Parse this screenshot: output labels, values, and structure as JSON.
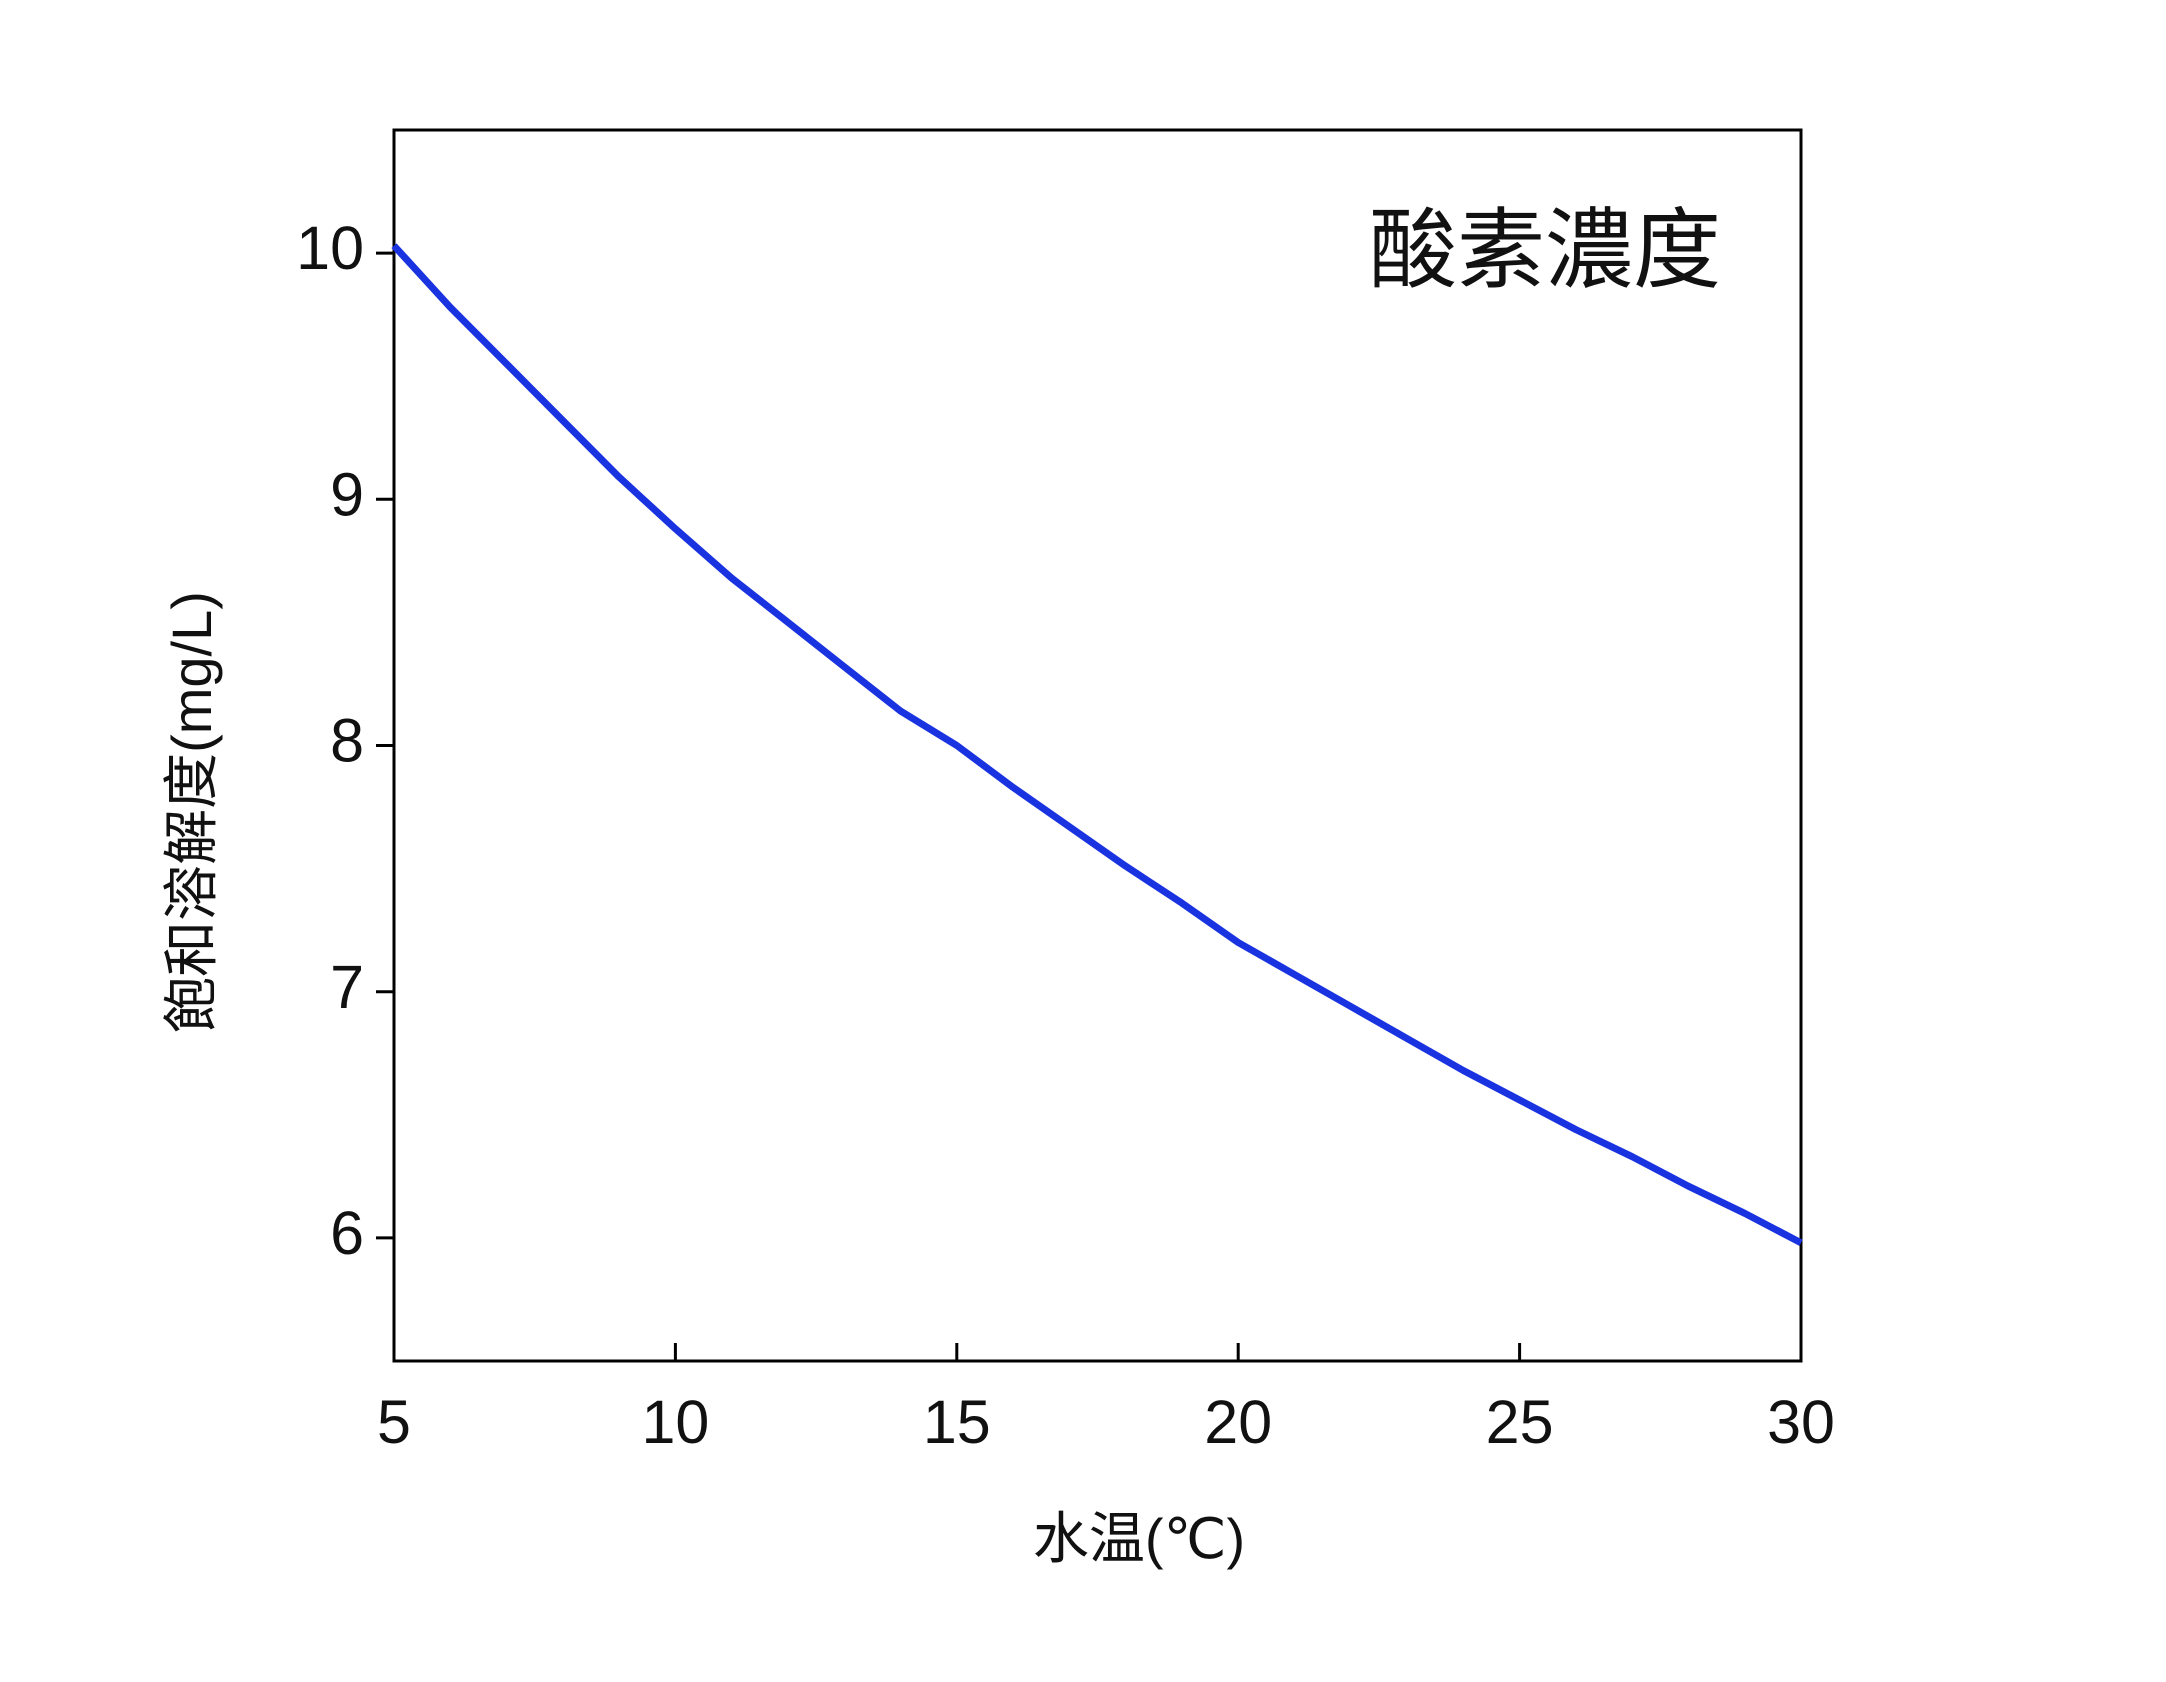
{
  "chart_data": {
    "type": "line",
    "annotation": "酸素濃度",
    "x_label": "水温(℃)",
    "y_label": "飽和溶解度(mg/L)",
    "x": [
      5,
      6,
      7,
      8,
      9,
      10,
      11,
      12,
      13,
      14,
      15,
      16,
      17,
      18,
      19,
      20,
      21,
      22,
      23,
      24,
      25,
      26,
      27,
      28,
      29,
      30
    ],
    "series": [
      {
        "name": "酸素濃度",
        "color": "#1a33e0",
        "values": [
          10.03,
          9.78,
          9.55,
          9.32,
          9.09,
          8.88,
          8.68,
          8.5,
          8.32,
          8.14,
          8.0,
          7.83,
          7.67,
          7.51,
          7.36,
          7.2,
          7.07,
          6.94,
          6.81,
          6.68,
          6.56,
          6.44,
          6.33,
          6.21,
          6.1,
          5.98
        ]
      }
    ],
    "xlim": [
      5,
      30
    ],
    "xticks": [
      5,
      10,
      15,
      20,
      25,
      30
    ],
    "ylim": [
      5.5,
      10.5
    ],
    "yticks": [
      6,
      7,
      8,
      9,
      10
    ]
  }
}
